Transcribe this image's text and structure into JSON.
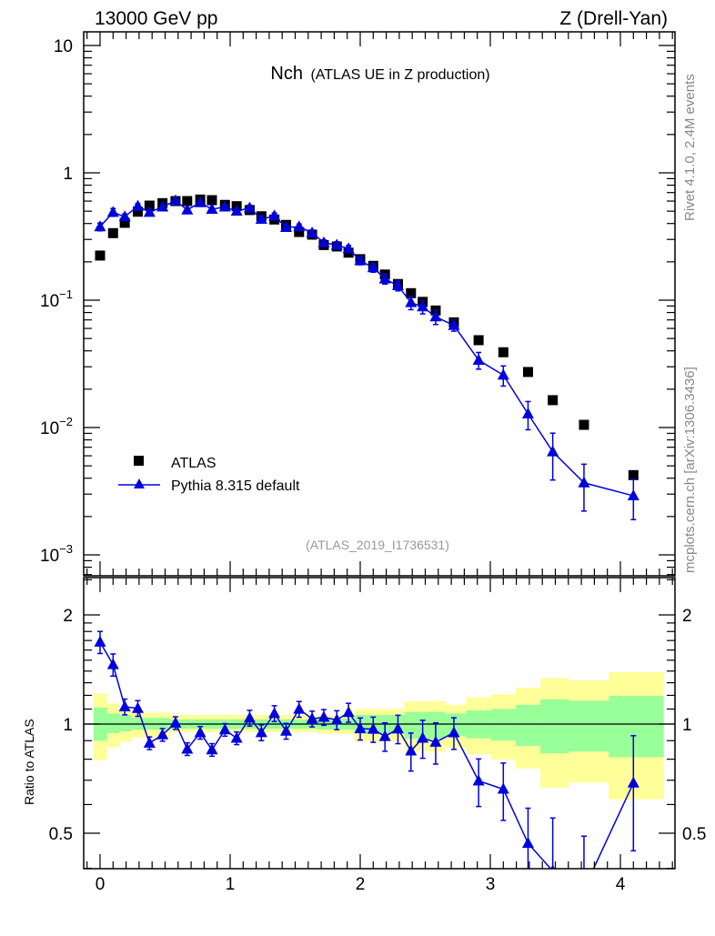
{
  "header": {
    "left_label": "13000 GeV pp",
    "right_label": "Z (Drell-Yan)",
    "title_main": "Nch",
    "title_sub": "(ATLAS UE in Z production)",
    "side_top": "Rivet 4.1.0,  2.4M events",
    "side_bottom": "mcplots.cern.ch [arXiv:1306.3436]",
    "analysis_id": "(ATLAS_2019_I1736531)"
  },
  "colors": {
    "data": "#000000",
    "mc": "#0000dd",
    "band_green": "#99ff99",
    "band_yellow": "#ffff99",
    "side_text": "#888888"
  },
  "chart_data": [
    {
      "type": "scatter",
      "panel": "main",
      "yscale": "log",
      "xlim": [
        -0.13,
        4.42
      ],
      "ylim": [
        0.0007,
        12.8
      ],
      "ytick_labels": [
        {
          "value": 10,
          "base": "10",
          "exp": ""
        },
        {
          "value": 1,
          "base": "1",
          "exp": ""
        },
        {
          "value": 0.1,
          "base": "10",
          "exp": "−1"
        },
        {
          "value": 0.01,
          "base": "10",
          "exp": "−2"
        },
        {
          "value": 0.001,
          "base": "10",
          "exp": "−3"
        }
      ],
      "legend": {
        "placement": "bottom-left",
        "entries": [
          "ATLAS",
          "Pythia 8.315 default"
        ]
      },
      "x": [
        0,
        0.1,
        0.19,
        0.29,
        0.38,
        0.48,
        0.58,
        0.67,
        0.77,
        0.86,
        0.96,
        1.05,
        1.15,
        1.24,
        1.34,
        1.43,
        1.53,
        1.63,
        1.72,
        1.82,
        1.91,
        2.0,
        2.1,
        2.19,
        2.29,
        2.39,
        2.48,
        2.58,
        2.72,
        2.91,
        3.1,
        3.29,
        3.48,
        3.72,
        4.1
      ],
      "series": [
        {
          "name": "ATLAS",
          "marker": "square",
          "values": [
            0.224,
            0.336,
            0.405,
            0.495,
            0.553,
            0.578,
            0.6,
            0.6,
            0.617,
            0.61,
            0.56,
            0.547,
            0.51,
            0.456,
            0.43,
            0.39,
            0.343,
            0.327,
            0.271,
            0.264,
            0.236,
            0.21,
            0.186,
            0.159,
            0.134,
            0.1135,
            0.097,
            0.083,
            0.067,
            0.0485,
            0.039,
            0.0273,
            0.0164,
            0.0105,
            0.00423
          ]
        },
        {
          "name": "Pythia 8.315 default",
          "marker": "triangle",
          "values": [
            0.377,
            0.49,
            0.452,
            0.547,
            0.49,
            0.54,
            0.604,
            0.512,
            0.584,
            0.518,
            0.54,
            0.5,
            0.53,
            0.432,
            0.46,
            0.373,
            0.377,
            0.338,
            0.283,
            0.271,
            0.254,
            0.204,
            0.18,
            0.147,
            0.13,
            0.0957,
            0.0887,
            0.074,
            0.0634,
            0.0338,
            0.0258,
            0.0128,
            0.00645,
            0.00368,
            0.00291
          ],
          "rel_err": [
            0.07,
            0.07,
            0.05,
            0.05,
            0.04,
            0.04,
            0.04,
            0.04,
            0.04,
            0.04,
            0.04,
            0.04,
            0.05,
            0.05,
            0.05,
            0.05,
            0.05,
            0.05,
            0.05,
            0.06,
            0.06,
            0.07,
            0.08,
            0.09,
            0.09,
            0.12,
            0.12,
            0.13,
            0.1,
            0.15,
            0.18,
            0.25,
            0.4,
            0.4,
            0.35
          ]
        }
      ]
    },
    {
      "type": "scatter",
      "panel": "ratio",
      "yscale": "log",
      "ylabel": "Ratio to ATLAS",
      "ylim": [
        0.4,
        2.52
      ],
      "xlim": [
        -0.13,
        4.42
      ],
      "xtick_labels": [
        "0",
        "1",
        "2",
        "3",
        "4"
      ],
      "ytick_labels": [
        "0.5",
        "1",
        "2"
      ],
      "bin_range": [
        -0.05,
        4.33
      ],
      "band_green": {
        "lo": [
          0.9,
          0.944,
          0.955,
          0.965,
          0.965,
          0.965,
          0.97,
          0.97,
          0.97,
          0.97,
          0.97,
          0.97,
          0.97,
          0.97,
          0.97,
          0.97,
          0.97,
          0.97,
          0.965,
          0.965,
          0.965,
          0.94,
          0.94,
          0.94,
          0.94,
          0.91,
          0.91,
          0.91,
          0.925,
          0.913,
          0.9,
          0.87,
          0.83,
          0.84,
          0.81
        ],
        "hi": [
          1.11,
          1.07,
          1.06,
          1.04,
          1.04,
          1.04,
          1.03,
          1.03,
          1.03,
          1.03,
          1.03,
          1.03,
          1.03,
          1.03,
          1.03,
          1.03,
          1.03,
          1.03,
          1.035,
          1.035,
          1.035,
          1.06,
          1.06,
          1.06,
          1.06,
          1.08,
          1.08,
          1.08,
          1.07,
          1.09,
          1.1,
          1.13,
          1.17,
          1.16,
          1.196
        ]
      },
      "band_yellow": {
        "lo": [
          0.795,
          0.862,
          0.893,
          0.918,
          0.918,
          0.918,
          0.95,
          0.95,
          0.95,
          0.95,
          0.95,
          0.95,
          0.95,
          0.95,
          0.95,
          0.95,
          0.95,
          0.95,
          0.94,
          0.94,
          0.94,
          0.895,
          0.895,
          0.895,
          0.895,
          0.84,
          0.84,
          0.84,
          0.86,
          0.826,
          0.798,
          0.754,
          0.667,
          0.69,
          0.62
        ],
        "hi": [
          1.215,
          1.14,
          1.097,
          1.076,
          1.076,
          1.076,
          1.06,
          1.06,
          1.06,
          1.06,
          1.06,
          1.06,
          1.06,
          1.06,
          1.06,
          1.06,
          1.06,
          1.06,
          1.055,
          1.055,
          1.055,
          1.1,
          1.1,
          1.1,
          1.1,
          1.155,
          1.155,
          1.155,
          1.13,
          1.185,
          1.208,
          1.26,
          1.34,
          1.32,
          1.39
        ]
      }
    }
  ]
}
